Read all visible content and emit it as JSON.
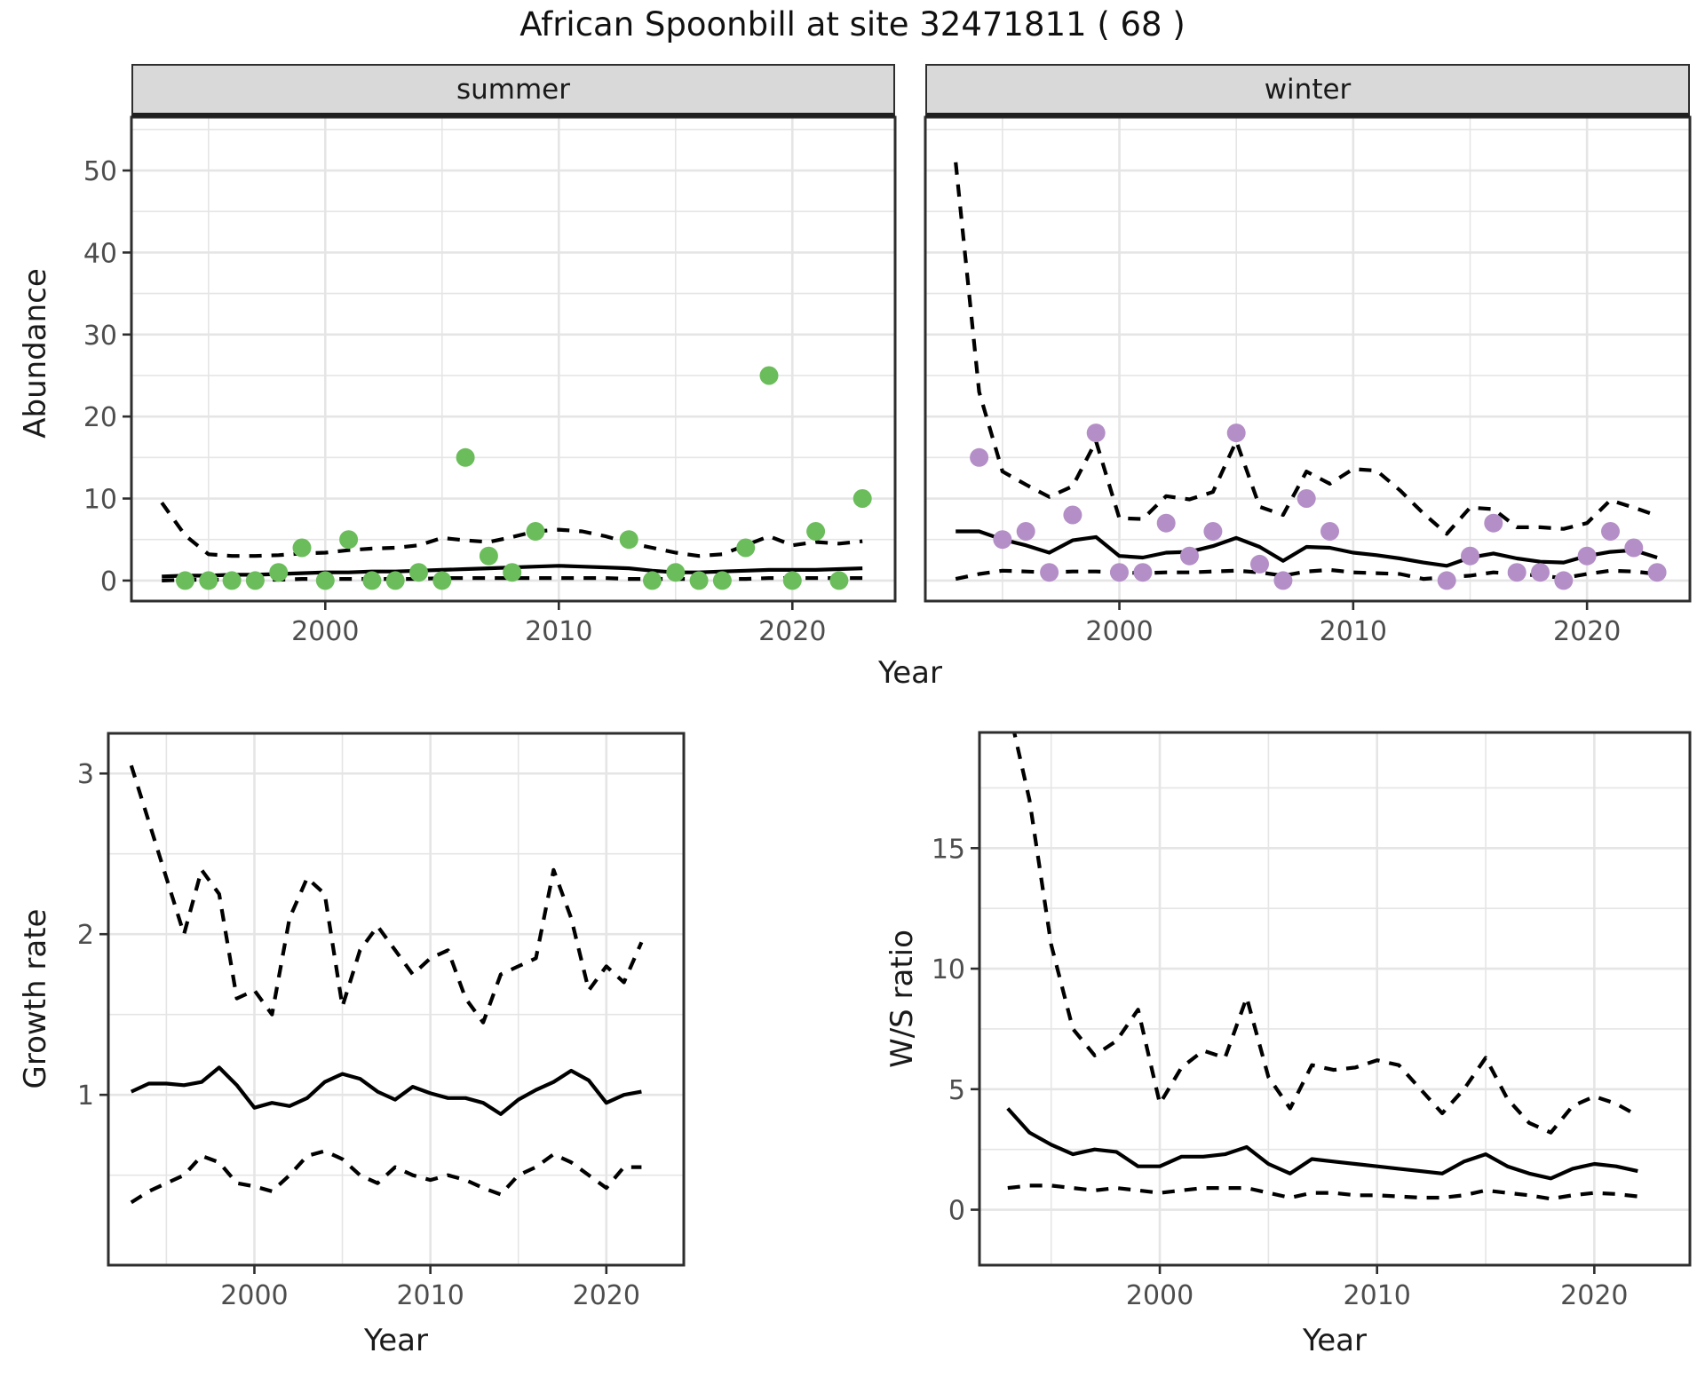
{
  "title": "African Spoonbill at site 32471811 ( 68 )",
  "labels": {
    "facet_summer": "summer",
    "facet_winter": "winter",
    "abundance": "Abundance",
    "growth_rate": "Growth rate",
    "ws_ratio": "W/S ratio",
    "year": "Year"
  },
  "colors": {
    "summer_point": "#6bbd5b",
    "winter_point": "#b48fc7",
    "line": "#000000",
    "grid": "#e5e5e5",
    "panel_border": "#2e2e2e",
    "strip_bg": "#d9d9d9",
    "tick_label": "#4d4d4d",
    "background": "#ffffff"
  },
  "chart_data": [
    {
      "id": "abundance-summer",
      "type": "line+scatter",
      "facet_label": "summer",
      "ylabel": "Abundance",
      "xlabel": "Year",
      "xlim": [
        1991.7,
        2024.4
      ],
      "ylim": [
        -2.5,
        56.5
      ],
      "xticks": {
        "major": [
          2000,
          2010,
          2020
        ],
        "minor": [
          1995,
          2005,
          2015
        ]
      },
      "yticks": {
        "major": [
          0,
          10,
          20,
          30,
          40,
          50
        ],
        "minor": [
          5,
          15,
          25,
          35,
          45,
          55
        ]
      },
      "grid": true,
      "legend": "none",
      "x": [
        1993,
        1994,
        1995,
        1996,
        1997,
        1998,
        1999,
        2000,
        2001,
        2002,
        2003,
        2004,
        2005,
        2006,
        2007,
        2008,
        2009,
        2010,
        2011,
        2012,
        2013,
        2014,
        2015,
        2016,
        2017,
        2018,
        2019,
        2020,
        2021,
        2022,
        2023
      ],
      "series": [
        {
          "name": "median",
          "style": "solid",
          "values": [
            0.5,
            0.6,
            0.6,
            0.7,
            0.7,
            0.8,
            0.9,
            1.0,
            1.0,
            1.1,
            1.1,
            1.2,
            1.3,
            1.4,
            1.5,
            1.6,
            1.7,
            1.8,
            1.7,
            1.6,
            1.5,
            1.2,
            1.0,
            1.0,
            1.1,
            1.2,
            1.3,
            1.3,
            1.3,
            1.4,
            1.5
          ]
        },
        {
          "name": "upper_ci",
          "style": "dashed",
          "values": [
            9.5,
            5.5,
            3.2,
            3.0,
            3.0,
            3.1,
            3.3,
            3.4,
            3.7,
            3.9,
            4.0,
            4.3,
            5.2,
            4.9,
            4.7,
            5.3,
            6.0,
            6.2,
            6.0,
            5.4,
            4.6,
            4.0,
            3.4,
            3.0,
            3.2,
            4.3,
            5.4,
            4.3,
            4.7,
            4.5,
            4.8
          ]
        },
        {
          "name": "lower_ci",
          "style": "dashed",
          "values": [
            0.0,
            0.1,
            0.1,
            0.1,
            0.1,
            0.1,
            0.2,
            0.2,
            0.2,
            0.2,
            0.2,
            0.2,
            0.3,
            0.3,
            0.3,
            0.3,
            0.3,
            0.3,
            0.3,
            0.3,
            0.2,
            0.2,
            0.2,
            0.2,
            0.2,
            0.2,
            0.3,
            0.3,
            0.3,
            0.3,
            0.3
          ]
        }
      ],
      "points": {
        "color_key": "summer_point",
        "x": [
          1994,
          1995,
          1996,
          1997,
          1998,
          1999,
          2000,
          2001,
          2002,
          2003,
          2004,
          2005,
          2006,
          2007,
          2008,
          2009,
          2013,
          2014,
          2015,
          2016,
          2017,
          2018,
          2019,
          2020,
          2021,
          2022,
          2023
        ],
        "y": [
          0,
          0,
          0,
          0,
          1,
          4,
          0,
          5,
          0,
          0,
          1,
          0,
          15,
          3,
          1,
          6,
          5,
          0,
          1,
          0,
          0,
          4,
          25,
          0,
          6,
          0,
          10
        ]
      }
    },
    {
      "id": "abundance-winter",
      "type": "line+scatter",
      "facet_label": "winter",
      "ylabel": "Abundance",
      "xlabel": "Year",
      "xlim": [
        1991.7,
        2024.4
      ],
      "ylim": [
        -2.5,
        56.5
      ],
      "xticks": {
        "major": [
          2000,
          2010,
          2020
        ],
        "minor": [
          1995,
          2005,
          2015
        ]
      },
      "yticks": {
        "major": [
          0,
          10,
          20,
          30,
          40,
          50
        ],
        "minor": [
          5,
          15,
          25,
          35,
          45,
          55
        ]
      },
      "grid": true,
      "legend": "none",
      "x": [
        1993,
        1994,
        1995,
        1996,
        1997,
        1998,
        1999,
        2000,
        2001,
        2002,
        2003,
        2004,
        2005,
        2006,
        2007,
        2008,
        2009,
        2010,
        2011,
        2012,
        2013,
        2014,
        2015,
        2016,
        2017,
        2018,
        2019,
        2020,
        2021,
        2022,
        2023
      ],
      "series": [
        {
          "name": "median",
          "style": "solid",
          "values": [
            6.0,
            6.0,
            5.0,
            4.3,
            3.4,
            4.9,
            5.3,
            3.0,
            2.8,
            3.4,
            3.5,
            4.2,
            5.2,
            4.1,
            2.4,
            4.1,
            4.0,
            3.4,
            3.1,
            2.7,
            2.2,
            1.8,
            2.8,
            3.3,
            2.7,
            2.3,
            2.2,
            3.0,
            3.5,
            3.7,
            2.8
          ]
        },
        {
          "name": "upper_ci",
          "style": "dashed",
          "values": [
            51,
            23,
            13.3,
            11.7,
            10.2,
            11.5,
            17,
            7.6,
            7.5,
            10.3,
            9.9,
            10.8,
            17,
            9,
            8,
            13.3,
            11.8,
            13.6,
            13.4,
            11,
            8.2,
            5.7,
            8.9,
            8.7,
            6.5,
            6.5,
            6.3,
            7,
            9.8,
            8.9,
            7.9
          ]
        },
        {
          "name": "lower_ci",
          "style": "dashed",
          "values": [
            0.2,
            0.8,
            1.2,
            1.1,
            1.0,
            1.1,
            1.1,
            1.0,
            0.9,
            1.0,
            1.0,
            1.1,
            1.2,
            1.0,
            0.6,
            1.1,
            1.3,
            1.0,
            0.9,
            0.8,
            0.2,
            0.4,
            0.6,
            1.0,
            0.8,
            0.6,
            0.3,
            0.8,
            1.2,
            1.1,
            0.8
          ]
        }
      ],
      "points": {
        "color_key": "winter_point",
        "x": [
          1994,
          1995,
          1996,
          1997,
          1998,
          1999,
          2000,
          2001,
          2002,
          2003,
          2004,
          2005,
          2006,
          2007,
          2008,
          2009,
          2014,
          2015,
          2016,
          2017,
          2018,
          2019,
          2020,
          2021,
          2022,
          2023
        ],
        "y": [
          15,
          5,
          6,
          1,
          8,
          18,
          1,
          1,
          7,
          3,
          6,
          18,
          2,
          0,
          10,
          6,
          0,
          3,
          7,
          1,
          1,
          0,
          3,
          6,
          4,
          1
        ]
      }
    },
    {
      "id": "growth-rate",
      "type": "line",
      "facet_label": "",
      "ylabel": "Growth rate",
      "xlabel": "Year",
      "xlim": [
        1991.7,
        2024.4
      ],
      "ylim": [
        -0.06,
        3.25
      ],
      "xticks": {
        "major": [
          2000,
          2010,
          2020
        ],
        "minor": [
          1995,
          2005,
          2015
        ]
      },
      "yticks": {
        "major": [
          1,
          2,
          3
        ],
        "minor": [
          0.5,
          1.5,
          2.5
        ]
      },
      "grid": true,
      "legend": "none",
      "x": [
        1993,
        1994,
        1995,
        1996,
        1997,
        1998,
        1999,
        2000,
        2001,
        2002,
        2003,
        2004,
        2005,
        2006,
        2007,
        2008,
        2009,
        2010,
        2011,
        2012,
        2013,
        2014,
        2015,
        2016,
        2017,
        2018,
        2019,
        2020,
        2021,
        2022
      ],
      "series": [
        {
          "name": "median",
          "style": "solid",
          "values": [
            1.02,
            1.07,
            1.07,
            1.06,
            1.08,
            1.17,
            1.06,
            0.92,
            0.95,
            0.93,
            0.98,
            1.08,
            1.13,
            1.1,
            1.02,
            0.97,
            1.05,
            1.01,
            0.98,
            0.98,
            0.95,
            0.88,
            0.97,
            1.03,
            1.08,
            1.15,
            1.09,
            0.95,
            1.0,
            1.02
          ]
        },
        {
          "name": "upper_ci",
          "style": "dashed",
          "values": [
            3.05,
            2.7,
            2.35,
            2.0,
            2.4,
            2.25,
            1.6,
            1.65,
            1.5,
            2.1,
            2.35,
            2.25,
            1.55,
            1.9,
            2.05,
            1.9,
            1.75,
            1.85,
            1.9,
            1.6,
            1.45,
            1.75,
            1.8,
            1.85,
            2.4,
            2.1,
            1.65,
            1.8,
            1.7,
            1.95
          ]
        },
        {
          "name": "lower_ci",
          "style": "dashed",
          "values": [
            0.33,
            0.4,
            0.45,
            0.5,
            0.62,
            0.58,
            0.45,
            0.43,
            0.4,
            0.5,
            0.62,
            0.65,
            0.6,
            0.5,
            0.45,
            0.55,
            0.5,
            0.47,
            0.5,
            0.47,
            0.42,
            0.38,
            0.5,
            0.55,
            0.63,
            0.58,
            0.5,
            0.42,
            0.55,
            0.55
          ]
        }
      ]
    },
    {
      "id": "ws-ratio",
      "type": "line",
      "facet_label": "",
      "ylabel": "W/S ratio",
      "xlabel": "Year",
      "xlim": [
        1991.7,
        2024.4
      ],
      "ylim": [
        -2.3,
        19.8
      ],
      "xticks": {
        "major": [
          2000,
          2010,
          2020
        ],
        "minor": [
          1995,
          2005,
          2015
        ]
      },
      "yticks": {
        "major": [
          0,
          5,
          10,
          15
        ],
        "minor": [
          2.5,
          7.5,
          12.5,
          17.5
        ]
      },
      "grid": true,
      "legend": "none",
      "x": [
        1993,
        1994,
        1995,
        1996,
        1997,
        1998,
        1999,
        2000,
        2001,
        2002,
        2003,
        2004,
        2005,
        2006,
        2007,
        2008,
        2009,
        2010,
        2011,
        2012,
        2013,
        2014,
        2015,
        2016,
        2017,
        2018,
        2019,
        2020,
        2021,
        2022
      ],
      "series": [
        {
          "name": "median",
          "style": "solid",
          "values": [
            4.2,
            3.2,
            2.7,
            2.3,
            2.5,
            2.4,
            1.8,
            1.8,
            2.2,
            2.2,
            2.3,
            2.6,
            1.9,
            1.5,
            2.1,
            2.0,
            1.9,
            1.8,
            1.7,
            1.6,
            1.5,
            2.0,
            2.3,
            1.8,
            1.5,
            1.3,
            1.7,
            1.9,
            1.8,
            1.6
          ]
        },
        {
          "name": "upper_ci",
          "style": "dashed",
          "values": [
            21,
            17,
            11,
            7.5,
            6.4,
            7.0,
            8.3,
            4.4,
            5.9,
            6.6,
            6.3,
            8.8,
            5.5,
            4.2,
            6.0,
            5.8,
            5.9,
            6.2,
            6.0,
            5.0,
            4.0,
            5.0,
            6.3,
            4.6,
            3.6,
            3.2,
            4.3,
            4.7,
            4.4,
            3.9
          ]
        },
        {
          "name": "lower_ci",
          "style": "dashed",
          "values": [
            0.9,
            1.0,
            1.0,
            0.9,
            0.8,
            0.9,
            0.8,
            0.7,
            0.8,
            0.9,
            0.9,
            0.9,
            0.7,
            0.5,
            0.7,
            0.7,
            0.6,
            0.6,
            0.55,
            0.5,
            0.5,
            0.6,
            0.8,
            0.7,
            0.6,
            0.45,
            0.6,
            0.7,
            0.65,
            0.55
          ]
        }
      ]
    }
  ]
}
